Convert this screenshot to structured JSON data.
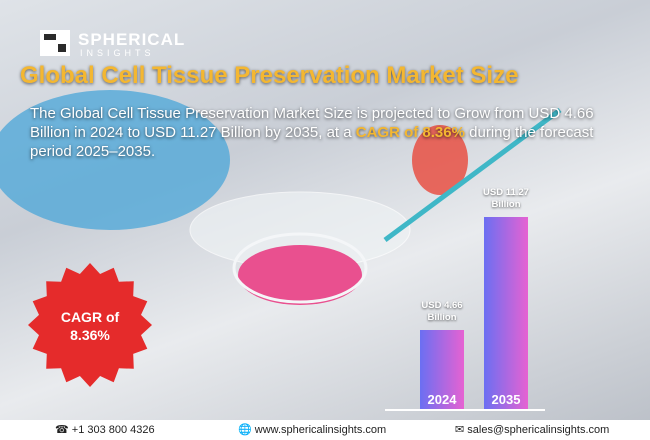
{
  "header": {
    "brand": "SPHERICAL",
    "brand_sub": "INSIGHTS"
  },
  "title": "Global Cell Tissue Preservation Market Size",
  "description": [
    "The Global Cell Tissue Preservation Market Size is projected to Grow from USD 4.66 Billion in 2024 to USD 11.27 Billion by 2035, at a ",
    "CAGR of 8.36%",
    " during the forecast period 2025–2035."
  ],
  "badge": "CAGR of 8.36%",
  "chart_data": {
    "type": "bar",
    "categories": [
      "2024",
      "2035"
    ],
    "values": [
      4.66,
      11.27
    ],
    "value_labels": [
      "USD 4.66 Billion",
      "USD 11.27 Billion"
    ],
    "color": [
      "#6b6ff2",
      "#e662d2"
    ]
  },
  "footer": {
    "phone": "+1 303 800 4326",
    "website": "www.sphericalinsights.com",
    "email": "sales@sphericalinsights.com"
  }
}
